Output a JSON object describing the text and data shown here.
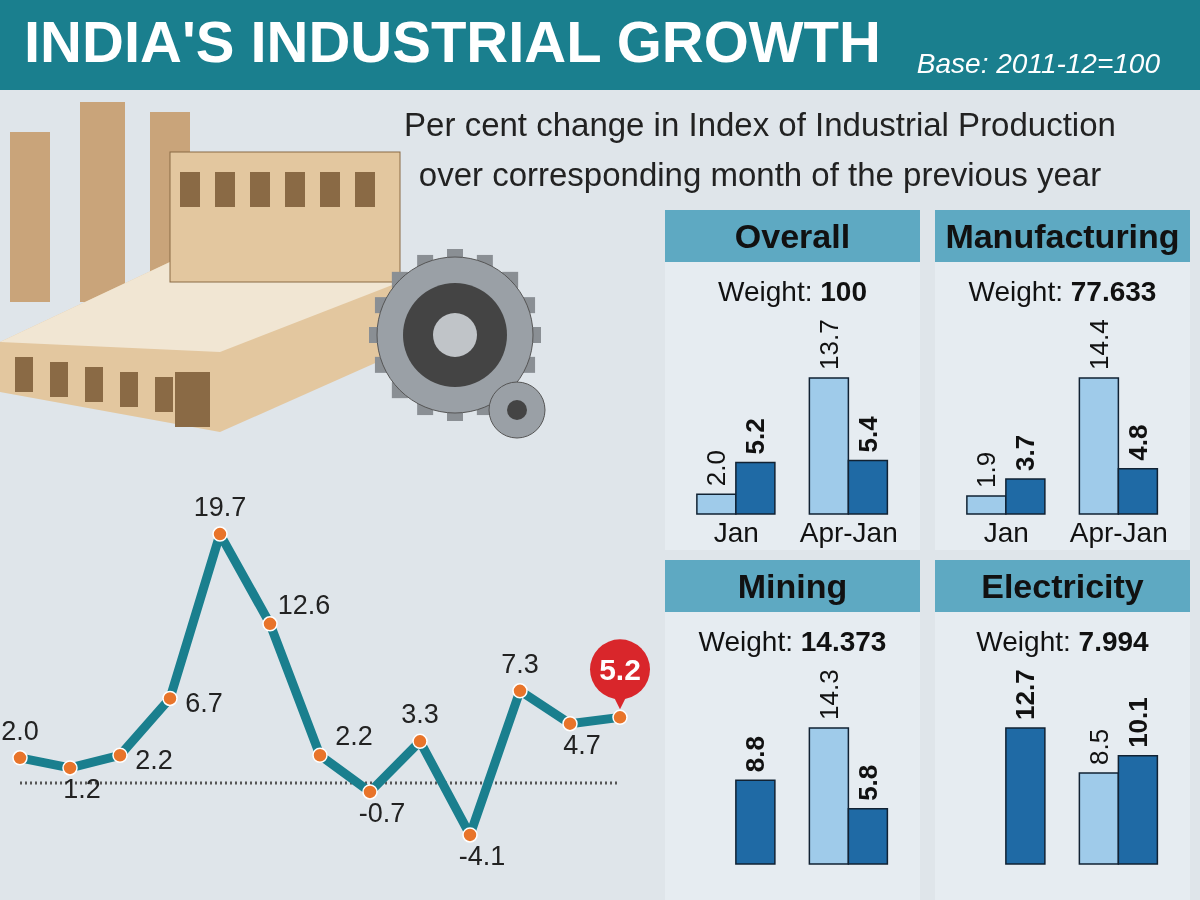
{
  "chart_data": [
    {
      "type": "line",
      "title": "INDIA'S INDUSTRIAL GROWTH",
      "subtitle": "Per cent change in Index of Industrial Production over corresponding month of the previous year",
      "annotations": [
        "Base: 2011-12=100"
      ],
      "categories": [
        null,
        null,
        null,
        null,
        null,
        null,
        null,
        null,
        null,
        null,
        null,
        null,
        null
      ],
      "series": [
        {
          "color": "#1a7f8e",
          "values": [
            2.0,
            1.2,
            2.2,
            6.7,
            19.7,
            12.6,
            2.2,
            -0.7,
            3.3,
            -4.1,
            7.3,
            4.7,
            5.2
          ],
          "value_labels": [
            "2.0",
            "1.2",
            "2.2",
            "6.7",
            "19.7",
            "12.6",
            "2.2",
            "-0.7",
            "3.3",
            "-4.1",
            "7.3",
            "4.7",
            "5.2"
          ]
        }
      ],
      "marker": "circle",
      "grid": false,
      "legend": false,
      "ref_lines": [
        {
          "axis": "y",
          "value": 0,
          "color": "#555555",
          "line_style": "dotted"
        }
      ]
    },
    {
      "type": "bar",
      "title": "Overall",
      "subtitle": "Weight: 100",
      "categories": [
        "Jan",
        "Apr-Jan"
      ],
      "series": [
        {
          "color": "#9fcbea",
          "values": [
            2.0,
            13.7
          ],
          "value_labels": [
            "2.0",
            "13.7"
          ]
        },
        {
          "color": "#1f6aa5",
          "values": [
            5.2,
            5.4
          ],
          "value_labels": [
            "5.2",
            "5.4"
          ]
        }
      ],
      "grid": false,
      "legend": false
    },
    {
      "type": "bar",
      "title": "Manufacturing",
      "subtitle": "Weight: 77.633",
      "categories": [
        "Jan",
        "Apr-Jan"
      ],
      "series": [
        {
          "color": "#9fcbea",
          "values": [
            1.9,
            14.4
          ],
          "value_labels": [
            "1.9",
            "14.4"
          ]
        },
        {
          "color": "#1f6aa5",
          "values": [
            3.7,
            4.8
          ],
          "value_labels": [
            "3.7",
            "4.8"
          ]
        }
      ],
      "grid": false,
      "legend": false
    },
    {
      "type": "bar",
      "title": "Mining",
      "subtitle": "Weight: 14.373",
      "categories": [
        null,
        null
      ],
      "series": [
        {
          "color": "#9fcbea",
          "values": [
            null,
            14.3
          ],
          "value_labels": [
            null,
            "14.3"
          ]
        },
        {
          "color": "#1f6aa5",
          "values": [
            8.8,
            5.8
          ],
          "value_labels": [
            "8.8",
            "5.8"
          ]
        }
      ],
      "grid": false,
      "legend": false
    },
    {
      "type": "bar",
      "title": "Electricity",
      "subtitle": "Weight: 7.994",
      "categories": [
        null,
        null
      ],
      "series": [
        {
          "color": "#9fcbea",
          "values": [
            null,
            8.5
          ],
          "value_labels": [
            null,
            "8.5"
          ]
        },
        {
          "color": "#1f6aa5",
          "values": [
            12.7,
            10.1
          ],
          "value_labels": [
            "12.7",
            "10.1"
          ]
        }
      ],
      "grid": false,
      "legend": false
    }
  ]
}
